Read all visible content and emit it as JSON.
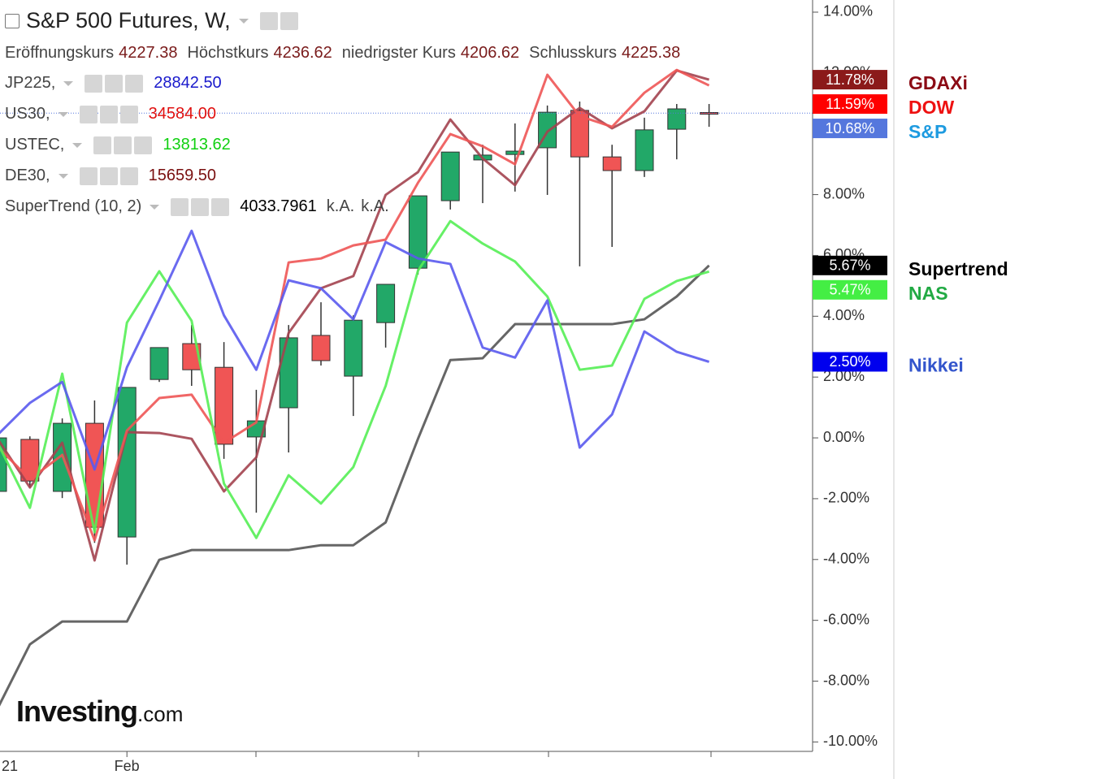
{
  "header": {
    "title": "S&P 500 Futures, W,",
    "ohlc": [
      {
        "label": "Eröffnungskurs",
        "value": "4227.38"
      },
      {
        "label": "Höchstkurs",
        "value": "4236.62"
      },
      {
        "label": "niedrigster Kurs",
        "value": "4206.62"
      },
      {
        "label": "Schlusskurs",
        "value": "4225.38"
      }
    ],
    "studies": [
      {
        "name": "JP225,",
        "value": "28842.50",
        "color": "#1a1acc"
      },
      {
        "name": "US30,",
        "value": "34584.00",
        "color": "#e01010"
      },
      {
        "name": "USTEC,",
        "value": "13813.62",
        "color": "#10d010"
      },
      {
        "name": "DE30,",
        "value": "15659.50",
        "color": "#7a1010"
      },
      {
        "name": "SuperTrend (10, 2)",
        "value": "4033.7961",
        "color": "#000000",
        "extra": [
          "k.A.",
          "k.A."
        ]
      }
    ]
  },
  "watermark": {
    "brand": "Investing",
    "suffix": ".com"
  },
  "chart_data": {
    "type": "candlestick",
    "categories": [
      "21",
      null,
      null,
      null,
      "Feb",
      null,
      null,
      null,
      null,
      null,
      null,
      null,
      null,
      null,
      null,
      null,
      null,
      null,
      null,
      null,
      null,
      null,
      null
    ],
    "ylim": [
      -10.31,
      14.4
    ],
    "yticks": [
      {
        "value": 14,
        "label": "14.00%"
      },
      {
        "value": 12,
        "label": "12.00%"
      },
      {
        "value": 10,
        "label": "10.00%"
      },
      {
        "value": 8,
        "label": "8.00%"
      },
      {
        "value": 6,
        "label": "6.00%"
      },
      {
        "value": 4,
        "label": "4.00%"
      },
      {
        "value": 2,
        "label": "2.00%"
      },
      {
        "value": 0,
        "label": "0.00%"
      },
      {
        "value": -2,
        "label": "-2.00%"
      },
      {
        "value": -4,
        "label": "-4.00%"
      },
      {
        "value": -6,
        "label": "-6.00%"
      },
      {
        "value": -8,
        "label": "-8.00%"
      },
      {
        "value": -10,
        "label": "-10.00%"
      }
    ],
    "candles": {
      "name": "S&P",
      "up_color": "#22a868",
      "down_color": "#f05555",
      "badge_color": "#5577dd",
      "legend_color": "#1e9be0",
      "open": [
        -1.76,
        -0.05,
        -1.76,
        0.48,
        -3.26,
        1.92,
        3.1,
        2.32,
        0.03,
        0.99,
        3.37,
        2.03,
        3.79,
        5.58,
        7.8,
        9.14,
        9.32,
        9.54,
        10.77,
        9.24,
        8.79,
        10.15,
        10.7
      ],
      "high": [
        0,
        0.05,
        0.64,
        1.23,
        1.66,
        2.97,
        3.71,
        3.15,
        1.58,
        3.71,
        4.46,
        4.03,
        5.05,
        7.96,
        9.4,
        9.64,
        10.34,
        10.93,
        11.06,
        9.64,
        10.53,
        10.98,
        10.98
      ],
      "low": [
        -1.76,
        -1.63,
        -1.98,
        -3.45,
        -4.17,
        1.84,
        1.71,
        -0.69,
        -2.46,
        -0.48,
        2.38,
        0.72,
        2.97,
        5.37,
        7.51,
        7.72,
        8.1,
        7.99,
        5.64,
        6.28,
        8.58,
        9.16,
        10.23
      ],
      "close": [
        0,
        -1.42,
        0.48,
        -2.94,
        1.66,
        2.97,
        2.24,
        -0.21,
        0.56,
        3.29,
        2.54,
        3.87,
        5.05,
        7.96,
        9.4,
        9.3,
        9.43,
        10.71,
        9.24,
        8.79,
        10.13,
        10.82,
        10.68
      ],
      "value_labels": [
        null,
        null,
        null,
        null,
        null,
        null,
        null,
        null,
        null,
        null,
        null,
        null,
        null,
        null,
        null,
        null,
        null,
        null,
        null,
        null,
        null,
        null,
        "10.68%"
      ]
    },
    "series": [
      {
        "name": "GDAXi",
        "color": "#a3424f",
        "badge_color": "#8b1a1a",
        "legend_color": "#8b0a14",
        "values": [
          -0.03,
          -1.63,
          -0.16,
          -4.03,
          0.19,
          0.16,
          -0.03,
          -1.76,
          -0.64,
          3.45,
          4.92,
          5.32,
          7.99,
          8.74,
          10.47,
          9.19,
          8.31,
          10.07,
          10.85,
          10.18,
          10.74,
          12.08,
          11.78
        ],
        "value_labels": [
          null,
          null,
          null,
          null,
          null,
          null,
          null,
          null,
          null,
          null,
          null,
          null,
          null,
          null,
          null,
          null,
          null,
          null,
          null,
          null,
          null,
          null,
          "11.78%"
        ]
      },
      {
        "name": "DOW",
        "color": "#ee5555",
        "badge_color": "#ff0000",
        "legend_color": "#ee1111",
        "values": [
          -0.29,
          -1.36,
          -0.56,
          -3.37,
          0.24,
          1.31,
          1.42,
          -0.16,
          0.51,
          5.77,
          5.9,
          6.33,
          6.52,
          8.39,
          9.99,
          9.59,
          9.0,
          11.94,
          10.58,
          10.23,
          11.35,
          12.1,
          11.59
        ],
        "value_labels": [
          null,
          null,
          null,
          null,
          null,
          null,
          null,
          null,
          null,
          null,
          null,
          null,
          null,
          null,
          null,
          null,
          null,
          null,
          null,
          null,
          null,
          null,
          "11.59%"
        ]
      },
      {
        "name": "Supertrend",
        "color": "#555555",
        "badge_color": "#000000",
        "legend_color": "#000000",
        "values": [
          -8.9,
          -6.79,
          -6.04,
          -6.04,
          -6.04,
          -4.01,
          -3.69,
          -3.69,
          -3.69,
          -3.69,
          -3.53,
          -3.53,
          -2.78,
          -0.03,
          2.56,
          2.62,
          3.74,
          3.74,
          3.74,
          3.74,
          3.9,
          4.65,
          5.67
        ],
        "value_labels": [
          null,
          null,
          null,
          null,
          null,
          null,
          null,
          null,
          null,
          null,
          null,
          null,
          null,
          null,
          null,
          null,
          null,
          null,
          null,
          null,
          null,
          null,
          "5.67%"
        ]
      },
      {
        "name": "NAS",
        "color": "#55ee55",
        "badge_color": "#44ee44",
        "legend_color": "#22aa44",
        "values": [
          -0.16,
          -2.3,
          2.11,
          -3.1,
          3.79,
          5.48,
          3.85,
          -1.5,
          -3.29,
          -1.23,
          -2.16,
          -0.96,
          1.71,
          5.5,
          7.13,
          6.39,
          5.8,
          4.65,
          2.24,
          2.38,
          4.57,
          5.16,
          5.47
        ],
        "value_labels": [
          null,
          null,
          null,
          null,
          null,
          null,
          null,
          null,
          null,
          null,
          null,
          null,
          null,
          null,
          null,
          null,
          null,
          null,
          null,
          null,
          null,
          null,
          "5.47%"
        ]
      },
      {
        "name": "Nikkei",
        "color": "#5a5aee",
        "badge_color": "#0000ee",
        "legend_color": "#3355cc",
        "values": [
          0.1,
          1.15,
          1.84,
          -1.04,
          2.32,
          4.52,
          6.81,
          4.03,
          2.24,
          5.18,
          4.92,
          3.9,
          6.44,
          5.9,
          5.72,
          2.97,
          2.64,
          4.52,
          -0.32,
          0.77,
          3.5,
          2.83,
          2.5
        ],
        "value_labels": [
          null,
          null,
          null,
          null,
          null,
          null,
          null,
          null,
          null,
          null,
          null,
          null,
          null,
          null,
          null,
          null,
          null,
          null,
          null,
          null,
          null,
          null,
          "2.50%"
        ]
      }
    ]
  }
}
